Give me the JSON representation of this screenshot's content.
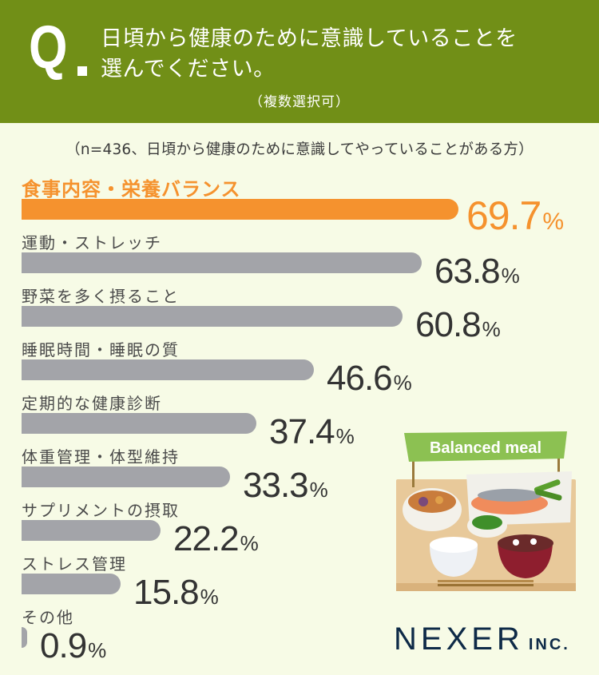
{
  "header": {
    "q_mark": "Q",
    "question_line1": "日頃から健康のために意識していることを",
    "question_line2": "選んでください。",
    "note": "（複数選択可）",
    "bg_color": "#718f17"
  },
  "sample_note": "（n=436、日頃から健康のために意識してやっていることがある方）",
  "rows": [
    {
      "label": "食事内容・栄養バランス",
      "value": "69.7",
      "unit": "%"
    },
    {
      "label": "運動・ストレッチ",
      "value": "63.8",
      "unit": "%"
    },
    {
      "label": "野菜を多く摂ること",
      "value": "60.8",
      "unit": "%"
    },
    {
      "label": "睡眠時間・睡眠の質",
      "value": "46.6",
      "unit": "%"
    },
    {
      "label": "定期的な健康診断",
      "value": "37.4",
      "unit": "%"
    },
    {
      "label": "体重管理・体型維持",
      "value": "33.3",
      "unit": "%"
    },
    {
      "label": "サプリメントの摂取",
      "value": "22.2",
      "unit": "%"
    },
    {
      "label": "ストレス管理",
      "value": "15.8",
      "unit": "%"
    },
    {
      "label": "その他",
      "value": "0.9",
      "unit": "%"
    }
  ],
  "illustration": {
    "banner_text": "Balanced meal"
  },
  "logo": {
    "name": "NEXER",
    "suffix": "INC."
  },
  "colors": {
    "highlight": "#f5922e",
    "bar": "#a3a4a9",
    "background": "#f7fbe6"
  },
  "chart_data": {
    "type": "bar",
    "orientation": "horizontal",
    "title": "日頃から健康のために意識していることを選んでください。（複数選択可）",
    "subtitle": "（n=436、日頃から健康のために意識してやっていることがある方）",
    "categories": [
      "食事内容・栄養バランス",
      "運動・ストレッチ",
      "野菜を多く摂ること",
      "睡眠時間・睡眠の質",
      "定期的な健康診断",
      "体重管理・体型維持",
      "サプリメントの摂取",
      "ストレス管理",
      "その他"
    ],
    "values": [
      69.7,
      63.8,
      60.8,
      46.6,
      37.4,
      33.3,
      22.2,
      15.8,
      0.9
    ],
    "unit": "%",
    "highlighted_category": "食事内容・栄養バランス",
    "xlabel": "",
    "ylabel": "",
    "grid": false,
    "legend": "none"
  }
}
